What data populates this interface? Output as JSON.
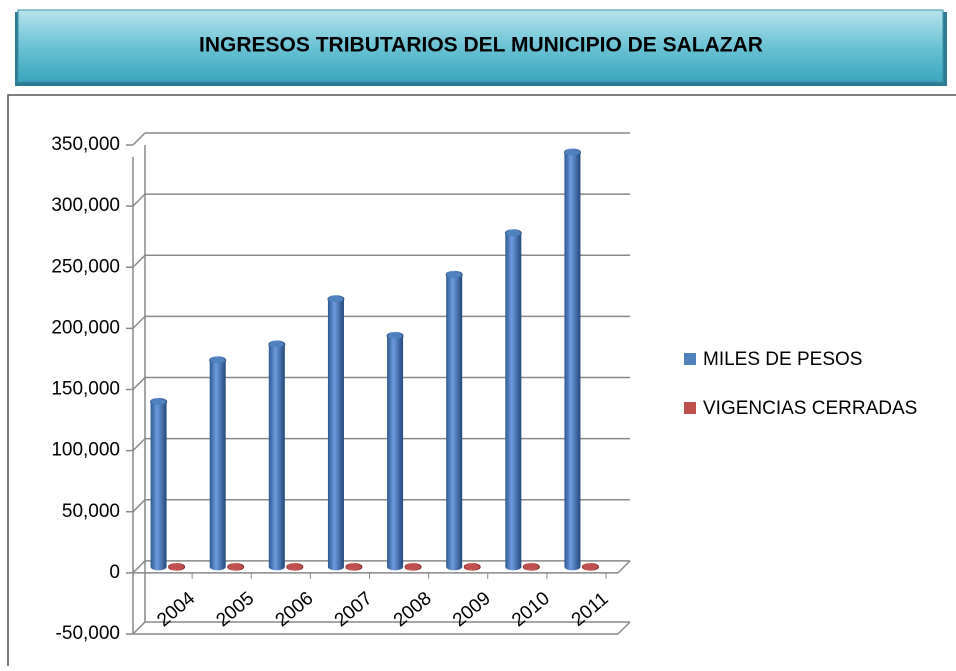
{
  "chart_data": {
    "type": "bar3d",
    "title": "INGRESOS TRIBUTARIOS DEL MUNICIPIO DE SALAZAR",
    "categories": [
      "2004",
      "2005",
      "2006",
      "2007",
      "2008",
      "2009",
      "2010",
      "2011"
    ],
    "series": [
      {
        "name": "MILES DE PESOS",
        "color": "#4f81bd",
        "values": [
          135000,
          169000,
          182000,
          219000,
          189000,
          239000,
          273000,
          339000
        ]
      },
      {
        "name": "VIGENCIAS CERRADAS",
        "color": "#c0504d",
        "values": [
          0,
          0,
          0,
          0,
          0,
          0,
          0,
          0
        ]
      }
    ],
    "ylim": [
      -50000,
      350000
    ],
    "yticks": [
      {
        "value": -50000,
        "label": "-50,000"
      },
      0,
      {
        "value": 50000,
        "label": "50,000"
      },
      {
        "value": 100000,
        "label": "100,000"
      },
      {
        "value": 150000,
        "label": "150,000"
      },
      {
        "value": 200000,
        "label": "200,000"
      },
      {
        "value": 250000,
        "label": "250,000"
      },
      {
        "value": 300000,
        "label": "300,000"
      },
      {
        "value": 350000,
        "label": "350,000"
      }
    ],
    "grid": true,
    "legend": "right"
  }
}
